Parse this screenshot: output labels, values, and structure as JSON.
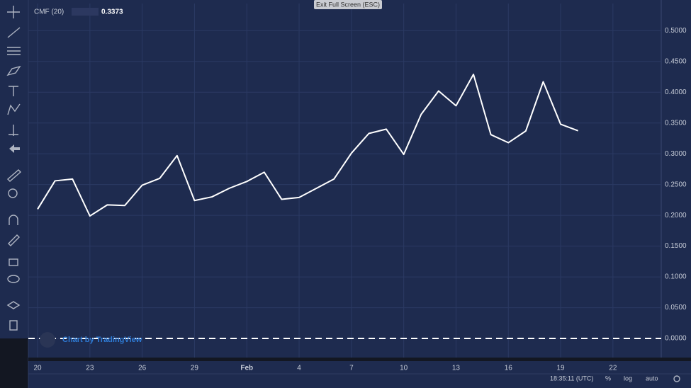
{
  "chart_data": {
    "type": "line",
    "title": "CMF (20)",
    "x": [
      0,
      1,
      2,
      3,
      4,
      5,
      6,
      7,
      8,
      9,
      10,
      11,
      12,
      13,
      14,
      15,
      16,
      17,
      18,
      19,
      20,
      21,
      22,
      23,
      24,
      25,
      26,
      27,
      28,
      29,
      30,
      31
    ],
    "series": [
      {
        "color": "#ffffff",
        "values": [
          0.21,
          0.256,
          0.259,
          0.199,
          0.217,
          0.216,
          0.249,
          0.26,
          0.297,
          0.224,
          0.23,
          0.244,
          0.255,
          0.27,
          0.226,
          0.229,
          0.244,
          0.259,
          0.301,
          0.333,
          0.34,
          0.299,
          0.364,
          0.402,
          0.378,
          0.429,
          0.331,
          0.318,
          0.337,
          0.417,
          0.348,
          0.3373
        ]
      }
    ],
    "xlim": [
      -0.53,
      35.77
    ],
    "xticks": [
      {
        "value": 0,
        "label": "20"
      },
      {
        "value": 3,
        "label": "23"
      },
      {
        "value": 6,
        "label": "26"
      },
      {
        "value": 9,
        "label": "29"
      },
      {
        "value": 12,
        "label": "Feb"
      },
      {
        "value": 15,
        "label": "4"
      },
      {
        "value": 18,
        "label": "7"
      },
      {
        "value": 21,
        "label": "10"
      },
      {
        "value": 24,
        "label": "13"
      },
      {
        "value": 27,
        "label": "16"
      },
      {
        "value": 30,
        "label": "19"
      },
      {
        "value": 33,
        "label": "22"
      }
    ],
    "ylim": [
      -0.031,
      0.544
    ],
    "yticks": [
      {
        "value": 0,
        "label": "0.0000"
      },
      {
        "value": 0.05,
        "label": "0.0500"
      },
      {
        "value": 0.1,
        "label": "0.1000"
      },
      {
        "value": 0.15,
        "label": "0.1500"
      },
      {
        "value": 0.2,
        "label": "0.2000"
      },
      {
        "value": 0.25,
        "label": "0.2500"
      },
      {
        "value": 0.3,
        "label": "0.3000"
      },
      {
        "value": 0.35,
        "label": "0.3500"
      },
      {
        "value": 0.4,
        "label": "0.4000"
      },
      {
        "value": 0.45,
        "label": "0.4500"
      },
      {
        "value": 0.5,
        "label": "0.5000"
      }
    ],
    "hlines": [
      0
    ],
    "grid": true
  },
  "ui": {
    "exit_button": "Exit Full Screen (ESC)",
    "watermark": "Chart by TradingView",
    "clock": "18:35:11 (UTC)",
    "percent": "%",
    "log": "log",
    "auto": "auto"
  }
}
